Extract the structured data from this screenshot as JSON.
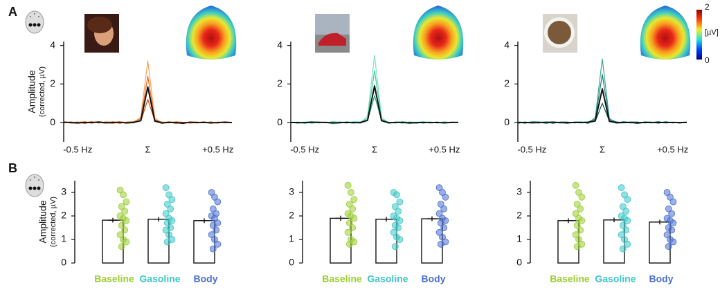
{
  "panels": [
    "A",
    "B"
  ],
  "colorbar": {
    "clim": [
      0,
      2
    ],
    "ticks": [
      0,
      2
    ],
    "label": "[µV]"
  },
  "chart_data": [
    {
      "type": "line",
      "ylabel": "Amplitude",
      "ylabel_sub": "(corrected, µV)",
      "x": [
        -0.6,
        -0.55,
        -0.5,
        -0.45,
        -0.4,
        -0.35,
        -0.3,
        -0.25,
        -0.2,
        -0.15,
        -0.1,
        -0.05,
        0,
        0.05,
        0.1,
        0.15,
        0.2,
        0.25,
        0.3,
        0.35,
        0.4,
        0.45,
        0.5,
        0.55,
        0.6
      ],
      "xlim": [
        -0.6,
        0.6
      ],
      "xticks": [
        {
          "value": -0.5,
          "label": "-0.5 Hz"
        },
        {
          "value": 0,
          "label": "Σ"
        },
        {
          "value": 0.5,
          "label": "+0.5 Hz"
        }
      ],
      "ylim": [
        -1,
        4.2
      ],
      "yticks": [
        0,
        2,
        4
      ],
      "series": [
        {
          "color": "#f7a35c",
          "values": [
            0.05,
            -0.03,
            0.02,
            0.06,
            -0.04,
            0.03,
            0.0,
            -0.05,
            0.04,
            0.02,
            -0.03,
            0.3,
            3.2,
            0.25,
            -0.04,
            0.05,
            0.02,
            -0.06,
            0.03,
            0.04,
            -0.02,
            0.05,
            -0.03,
            0.02,
            0.01
          ]
        },
        {
          "color": "#e8661c",
          "values": [
            -0.03,
            0.04,
            -0.02,
            0.0,
            0.05,
            -0.03,
            0.04,
            0.02,
            -0.04,
            0.03,
            0.05,
            0.2,
            2.4,
            0.15,
            0.03,
            -0.02,
            0.04,
            0.02,
            -0.03,
            0.0,
            0.04,
            -0.04,
            0.03,
            -0.02,
            0.0
          ]
        },
        {
          "color": "#c9480c",
          "values": [
            0.02,
            0.0,
            0.03,
            -0.04,
            0.02,
            0.0,
            -0.03,
            0.04,
            0.0,
            -0.02,
            0.03,
            0.08,
            1.2,
            0.1,
            0.0,
            0.03,
            -0.04,
            0.02,
            0.0,
            -0.02,
            0.03,
            0.0,
            -0.02,
            0.03,
            -0.01
          ]
        },
        {
          "color": "#111111",
          "values": [
            0.02,
            0.0,
            -0.02,
            0.01,
            0.0,
            0.03,
            -0.01,
            0.0,
            0.02,
            -0.02,
            0.01,
            0.1,
            1.85,
            0.08,
            -0.02,
            0.01,
            0.0,
            -0.03,
            0.02,
            0.0,
            0.01,
            -0.01,
            0.0,
            0.02,
            0.0
          ]
        }
      ]
    },
    {
      "type": "line",
      "x": [
        -0.6,
        -0.55,
        -0.5,
        -0.45,
        -0.4,
        -0.35,
        -0.3,
        -0.25,
        -0.2,
        -0.15,
        -0.1,
        -0.05,
        0,
        0.05,
        0.1,
        0.15,
        0.2,
        0.25,
        0.3,
        0.35,
        0.4,
        0.45,
        0.5,
        0.55,
        0.6
      ],
      "xlim": [
        -0.6,
        0.6
      ],
      "xticks": [
        {
          "value": -0.5,
          "label": "-0.5 Hz"
        },
        {
          "value": 0,
          "label": "Σ"
        },
        {
          "value": 0.5,
          "label": "+0.5 Hz"
        }
      ],
      "ylim": [
        -1,
        4.2
      ],
      "yticks": [
        0,
        2,
        4
      ],
      "series": [
        {
          "color": "#7fe3c4",
          "values": [
            0.04,
            -0.05,
            0.03,
            0.05,
            -0.03,
            0.02,
            -0.06,
            -0.04,
            0.05,
            0.01,
            -0.04,
            0.35,
            3.5,
            0.3,
            -0.05,
            0.04,
            0.03,
            -0.05,
            0.02,
            0.05,
            -0.03,
            0.04,
            -0.04,
            0.03,
            0.02
          ]
        },
        {
          "color": "#3cc9a2",
          "values": [
            -0.02,
            0.03,
            -0.04,
            0.02,
            0.04,
            -0.02,
            0.05,
            0.01,
            -0.03,
            0.04,
            0.03,
            0.22,
            2.7,
            0.18,
            0.02,
            -0.03,
            0.05,
            0.01,
            -0.04,
            0.02,
            0.03,
            -0.03,
            0.04,
            -0.01,
            0.01
          ]
        },
        {
          "color": "#1f9e7e",
          "values": [
            0.01,
            0.02,
            0.02,
            -0.03,
            0.01,
            0.02,
            -0.02,
            0.03,
            0.01,
            -0.03,
            0.02,
            0.1,
            1.4,
            0.12,
            0.01,
            0.02,
            -0.03,
            0.03,
            0.01,
            -0.03,
            0.02,
            0.01,
            -0.03,
            0.02,
            0.0
          ]
        },
        {
          "color": "#111111",
          "values": [
            0.01,
            0.0,
            0.0,
            0.02,
            0.01,
            0.01,
            -0.02,
            0.0,
            0.01,
            0.0,
            0.0,
            0.12,
            1.9,
            0.1,
            -0.01,
            0.01,
            0.01,
            -0.02,
            0.0,
            0.01,
            0.0,
            0.01,
            -0.01,
            0.01,
            0.01
          ]
        }
      ]
    },
    {
      "type": "line",
      "x": [
        -0.6,
        -0.55,
        -0.5,
        -0.45,
        -0.4,
        -0.35,
        -0.3,
        -0.25,
        -0.2,
        -0.15,
        -0.1,
        -0.05,
        0,
        0.05,
        0.1,
        0.15,
        0.2,
        0.25,
        0.3,
        0.35,
        0.4,
        0.45,
        0.5,
        0.55,
        0.6
      ],
      "xlim": [
        -0.6,
        0.6
      ],
      "xticks": [
        {
          "value": -0.5,
          "label": "-0.5 Hz"
        },
        {
          "value": 0,
          "label": "Σ"
        },
        {
          "value": 0.5,
          "label": "+0.5 Hz"
        }
      ],
      "ylim": [
        -1,
        4.2
      ],
      "yticks": [
        0,
        2,
        4
      ],
      "series": [
        {
          "color": "#3aa890",
          "values": [
            0.03,
            -0.04,
            0.05,
            0.04,
            -0.05,
            0.02,
            0.01,
            -0.04,
            0.03,
            0.04,
            -0.05,
            0.28,
            3.3,
            0.22,
            -0.03,
            0.06,
            0.01,
            -0.05,
            0.04,
            0.03,
            -0.04,
            0.06,
            -0.02,
            0.01,
            0.03
          ]
        },
        {
          "color": "#1e7d72",
          "values": [
            -0.04,
            0.03,
            -0.01,
            0.02,
            0.03,
            -0.04,
            0.03,
            0.03,
            -0.02,
            0.02,
            0.04,
            0.18,
            2.5,
            0.16,
            0.04,
            -0.01,
            0.03,
            0.03,
            -0.02,
            0.01,
            0.05,
            -0.02,
            0.02,
            -0.03,
            0.02
          ]
        },
        {
          "color": "#0f5550",
          "values": [
            0.03,
            0.01,
            0.02,
            -0.02,
            0.03,
            0.01,
            -0.02,
            0.02,
            0.02,
            -0.01,
            0.02,
            0.07,
            1.0,
            0.09,
            0.01,
            0.02,
            -0.02,
            0.01,
            0.02,
            -0.01,
            0.02,
            0.01,
            -0.01,
            0.02,
            0.0
          ]
        },
        {
          "color": "#111111",
          "values": [
            0.0,
            0.01,
            -0.01,
            0.0,
            0.01,
            0.02,
            0.0,
            -0.01,
            0.01,
            0.0,
            0.01,
            0.09,
            1.75,
            0.07,
            -0.01,
            0.0,
            0.01,
            -0.02,
            0.01,
            0.0,
            0.01,
            0.0,
            0.01,
            0.0,
            0.01
          ]
        }
      ]
    },
    {
      "type": "bar",
      "ylabel": "Amplitude",
      "ylabel_sub": "(corrected, µV)",
      "categories": [
        "Baseline",
        "Gasoline",
        "Body"
      ],
      "category_colors": [
        "#9acd32",
        "#3cc6c6",
        "#4a6fd0"
      ],
      "values": [
        1.82,
        1.86,
        1.8
      ],
      "errors": [
        0.1,
        0.1,
        0.1
      ],
      "color": "#ffffff",
      "edgecolor": "#111111",
      "ylim": [
        0,
        3.5
      ],
      "yticks": [
        0,
        1,
        2,
        3
      ],
      "points": [
        [
          3.1,
          2.9,
          2.6,
          2.4,
          2.2,
          2.0,
          1.9,
          1.8,
          1.6,
          1.4,
          1.2,
          1.0,
          0.9,
          0.7
        ],
        [
          3.2,
          2.9,
          2.7,
          2.5,
          2.3,
          2.1,
          1.9,
          1.8,
          1.7,
          1.5,
          1.4,
          1.2,
          1.0,
          0.9
        ],
        [
          3.0,
          2.8,
          2.6,
          2.3,
          2.1,
          2.0,
          1.9,
          1.7,
          1.6,
          1.4,
          1.2,
          1.0,
          0.8,
          0.6
        ]
      ]
    },
    {
      "type": "bar",
      "categories": [
        "Baseline",
        "Gasoline",
        "Body"
      ],
      "category_colors": [
        "#9acd32",
        "#3cc6c6",
        "#4a6fd0"
      ],
      "values": [
        1.9,
        1.86,
        1.88
      ],
      "errors": [
        0.11,
        0.1,
        0.1
      ],
      "color": "#ffffff",
      "edgecolor": "#111111",
      "ylim": [
        0,
        3.5
      ],
      "yticks": [
        0,
        1,
        2,
        3
      ],
      "points": [
        [
          3.3,
          3.0,
          2.7,
          2.5,
          2.3,
          2.1,
          2.0,
          1.9,
          1.7,
          1.5,
          1.3,
          1.0,
          0.9,
          0.8
        ],
        [
          3.0,
          2.9,
          2.6,
          2.4,
          2.2,
          2.0,
          1.9,
          1.8,
          1.6,
          1.5,
          1.3,
          1.1,
          1.0,
          0.7
        ],
        [
          3.2,
          3.0,
          2.8,
          2.5,
          2.3,
          2.1,
          1.9,
          1.8,
          1.7,
          1.5,
          1.3,
          1.1,
          0.9,
          0.8
        ]
      ]
    },
    {
      "type": "bar",
      "categories": [
        "Baseline",
        "Gasoline",
        "Body"
      ],
      "category_colors": [
        "#9acd32",
        "#3cc6c6",
        "#4a6fd0"
      ],
      "values": [
        1.8,
        1.83,
        1.74
      ],
      "errors": [
        0.1,
        0.1,
        0.1
      ],
      "color": "#ffffff",
      "edgecolor": "#111111",
      "ylim": [
        0,
        3.5
      ],
      "yticks": [
        0,
        1,
        2,
        3
      ],
      "points": [
        [
          3.3,
          3.0,
          2.8,
          2.5,
          2.3,
          2.1,
          1.9,
          1.8,
          1.6,
          1.4,
          1.2,
          1.0,
          0.8,
          0.7
        ],
        [
          3.2,
          2.9,
          2.7,
          2.4,
          2.2,
          2.0,
          1.9,
          1.8,
          1.6,
          1.4,
          1.2,
          1.0,
          0.8,
          0.6
        ],
        [
          3.0,
          2.8,
          2.6,
          2.3,
          2.1,
          1.9,
          1.8,
          1.7,
          1.5,
          1.4,
          1.2,
          1.0,
          0.9,
          0.7
        ]
      ]
    }
  ]
}
